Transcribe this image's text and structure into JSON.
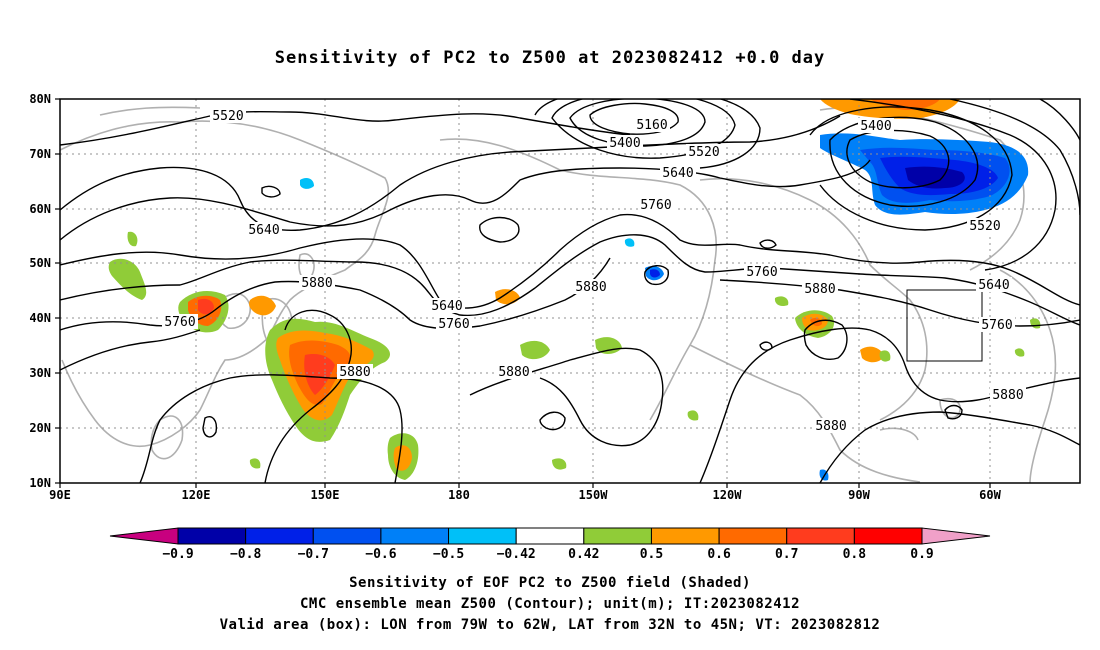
{
  "title": "Sensitivity of PC2 to Z500 at 2023082412 +0.0 day",
  "map": {
    "lat_ticks": [
      "80N",
      "70N",
      "60N",
      "50N",
      "40N",
      "30N",
      "20N",
      "10N"
    ],
    "lon_ticks": [
      "90E",
      "120E",
      "150E",
      "180",
      "150W",
      "120W",
      "90W",
      "60W"
    ],
    "contour_labels": [
      "5520",
      "5160",
      "5400",
      "5520",
      "5640",
      "5760",
      "5400",
      "5520",
      "5640",
      "5880",
      "5640",
      "5760",
      "5760",
      "5880",
      "5880",
      "5880",
      "5760",
      "5880",
      "5640",
      "5760",
      "5880",
      "5880",
      "5880"
    ],
    "valid_box": {
      "lon_from": "79W",
      "lon_to": "62W",
      "lat_from": "32N",
      "lat_to": "45N"
    }
  },
  "colorbar": {
    "labels": [
      "-0.9",
      "-0.8",
      "-0.7",
      "-0.6",
      "-0.5",
      "-0.42",
      "0.42",
      "0.5",
      "0.6",
      "0.7",
      "0.8",
      "0.9"
    ],
    "colors": [
      "#c8007f",
      "#0000a8",
      "#0020e8",
      "#0050f0",
      "#0080f8",
      "#00c0f8",
      "#ffffff",
      "#90cc38",
      "#ff9900",
      "#ff6a00",
      "#ff3c1e",
      "#ff0000",
      "#f0a0c8"
    ]
  },
  "captions": {
    "line1": "Sensitivity of EOF PC2 to Z500 field (Shaded)",
    "line2": "CMC ensemble mean Z500 (Contour); unit(m); IT:2023082412",
    "line3": "Valid area (box): LON from 79W to 62W, LAT from 32N to 45N; VT: 2023082812"
  }
}
